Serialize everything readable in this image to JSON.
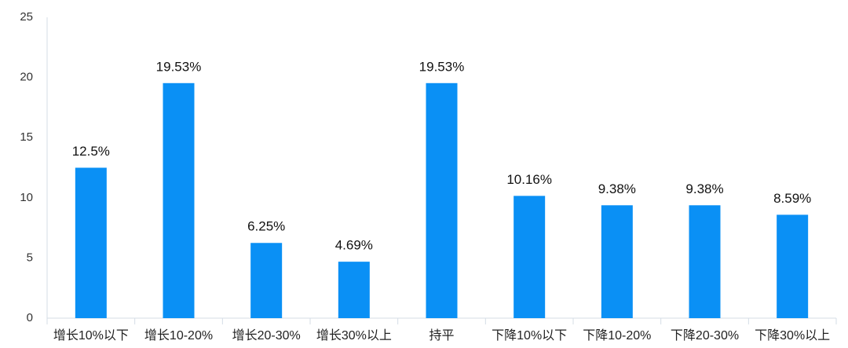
{
  "chart_data": {
    "type": "bar",
    "categories": [
      "增长10%以下",
      "增长10-20%",
      "增长20-30%",
      "增长30%以上",
      "持平",
      "下降10%以下",
      "下降10-20%",
      "下降20-30%",
      "下降30%以上"
    ],
    "values": [
      12.5,
      19.53,
      6.25,
      4.69,
      19.53,
      10.16,
      9.38,
      9.38,
      8.59
    ],
    "value_labels": [
      "12.5%",
      "19.53%",
      "6.25%",
      "4.69%",
      "19.53%",
      "10.16%",
      "9.38%",
      "9.38%",
      "8.59%"
    ],
    "color": "#0a90f5",
    "ylim": [
      0,
      25
    ],
    "yticks": [
      0,
      5,
      10,
      15,
      20,
      25
    ],
    "grid": false
  }
}
